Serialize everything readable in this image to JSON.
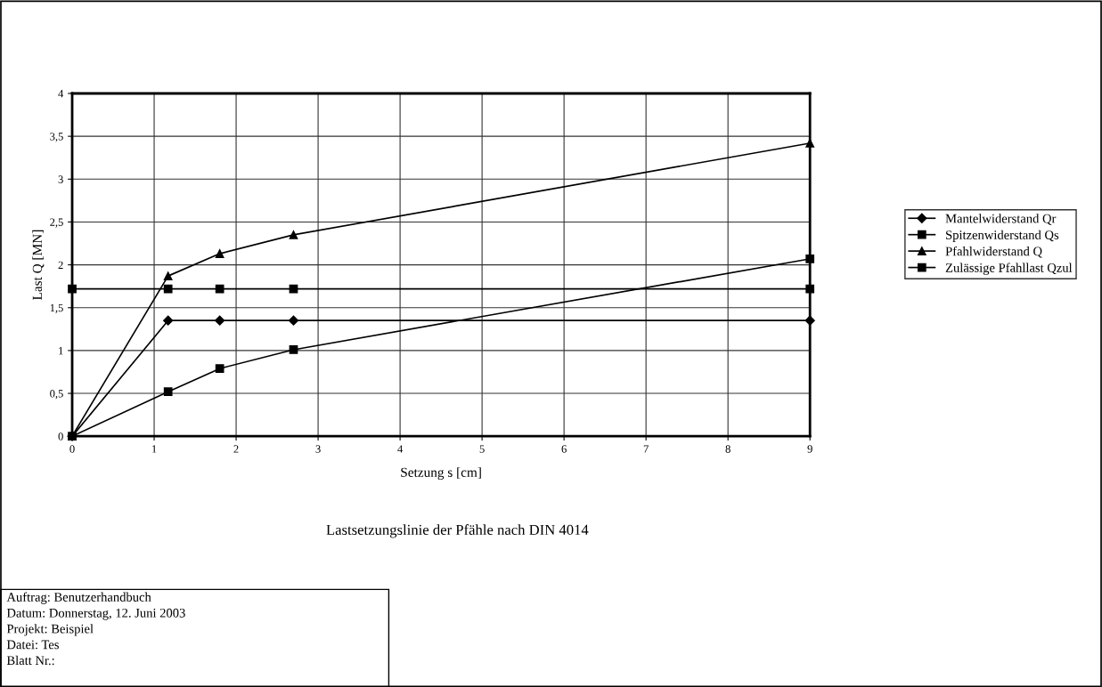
{
  "chart_data": {
    "type": "line",
    "xlabel": "Setzung s [cm]",
    "ylabel": "Last Q [MN]",
    "xlim": [
      0,
      9
    ],
    "ylim": [
      0,
      4
    ],
    "xticks": [
      0,
      1,
      2,
      3,
      4,
      5,
      6,
      7,
      8,
      9
    ],
    "yticks": [
      0,
      {
        "value": 0.5,
        "label": "0,5"
      },
      1,
      {
        "value": 1.5,
        "label": "1,5"
      },
      2,
      {
        "value": 2.5,
        "label": "2,5"
      },
      3,
      {
        "value": 3.5,
        "label": "3,5"
      },
      4
    ],
    "grid": true,
    "legend": "right",
    "line_style": "solid",
    "series": [
      {
        "name": "Mantelwiderstand Qr",
        "color": "#000000",
        "marker": "diamond",
        "x": [
          0,
          1.17,
          1.8,
          2.7,
          9
        ],
        "values": [
          0,
          1.35,
          1.35,
          1.35,
          1.35
        ]
      },
      {
        "name": "Spitzenwiderstand Qs",
        "color": "#000000",
        "marker": "square",
        "x": [
          0,
          1.17,
          1.8,
          2.7,
          9
        ],
        "values": [
          0,
          0.52,
          0.79,
          1.01,
          2.07
        ]
      },
      {
        "name": "Pfahlwiderstand Q",
        "color": "#000000",
        "marker": "triangle",
        "x": [
          0,
          1.17,
          1.8,
          2.7,
          9
        ],
        "values": [
          0,
          1.87,
          2.13,
          2.35,
          3.42
        ]
      },
      {
        "name": "Zulässige Pfahllast Qzul",
        "color": "#000000",
        "marker": "square",
        "x": [
          0,
          1.17,
          1.8,
          2.7,
          9
        ],
        "values": [
          1.72,
          1.72,
          1.72,
          1.72,
          1.72
        ]
      }
    ],
    "annotations": [
      "Lastsetzungslinie der Pfähle nach DIN 4014",
      "Auftrag: Benutzerhandbuch\nDatum: Donnerstag, 12. Juni 2003\nProjekt: Beispiel\nDatei: Tes\nBlatt Nr.:"
    ]
  }
}
